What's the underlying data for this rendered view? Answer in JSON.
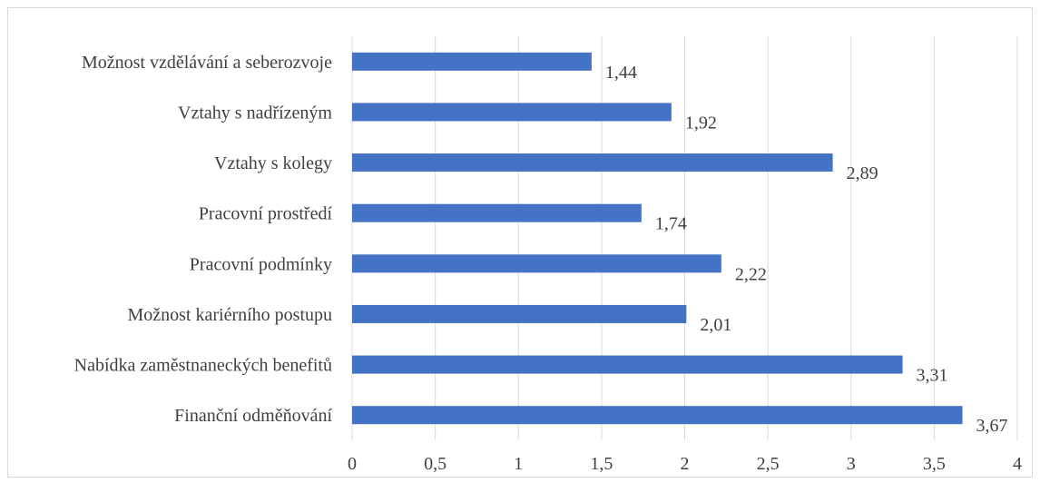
{
  "chart_data": {
    "type": "bar",
    "orientation": "horizontal",
    "categories": [
      "Možnost vzdělávání a seberozvoje",
      "Vztahy s nadřízeným",
      "Vztahy s kolegy",
      "Pracovní prostředí",
      "Pracovní podmínky",
      "Možnost kariérního postupu",
      "Nabídka zaměstnaneckých benefitů",
      "Finanční odměňování"
    ],
    "values": [
      1.44,
      1.92,
      2.89,
      1.74,
      2.22,
      2.01,
      3.31,
      3.67
    ],
    "value_labels": [
      "1,44",
      "1,92",
      "2,89",
      "1,74",
      "2,22",
      "2,01",
      "3,31",
      "3,67"
    ],
    "xlim": [
      0,
      4
    ],
    "ticks": [
      0,
      0.5,
      1,
      1.5,
      2,
      2.5,
      3,
      3.5,
      4
    ],
    "tick_labels": [
      "0",
      "0,5",
      "1",
      "1,5",
      "2",
      "2,5",
      "3",
      "3,5",
      "4"
    ],
    "grid": true,
    "bar_color": "#4472c4",
    "grid_color": "#d9d9d9",
    "title": "",
    "xlabel": "",
    "ylabel": ""
  }
}
